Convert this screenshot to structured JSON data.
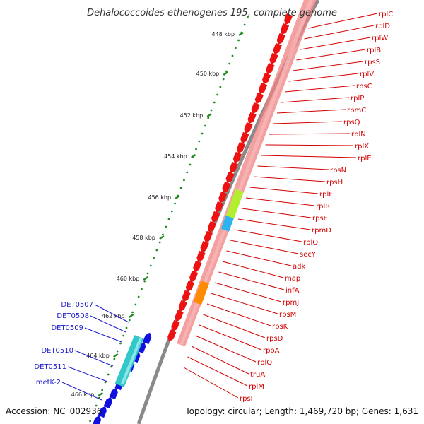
{
  "title": "Dehalococcoides ethenogenes 195, complete genome",
  "accession": "Accession: NC_002936",
  "topology": "Topology: circular; Length: 1,469,720 bp; Genes: 1,631",
  "colors": {
    "forward_gene": "#1010e0",
    "reverse_gene": "#ee1111",
    "cyan_gene": "#30c8c8",
    "lime_gene": "#b4ee30",
    "sky_gene": "#2db4f0",
    "orange_gene": "#ff8c00",
    "pink_track": "#f08080",
    "tick_green": "#228b22",
    "red_label": "#d40000",
    "blue_label": "#1a1acc"
  },
  "kbp_ticks": [
    "448 kbp",
    "450 kbp",
    "452 kbp",
    "454 kbp",
    "456 kbp",
    "458 kbp",
    "460 kbp",
    "462 kbp",
    "464 kbp",
    "466 kbp"
  ],
  "red_genes": [
    "rplC",
    "rplD",
    "rplW",
    "rplB",
    "rpsS",
    "rplV",
    "rpsC",
    "rplP",
    "rpmC",
    "rpsQ",
    "rplN",
    "rplX",
    "rplE",
    "rpsN",
    "rpsH",
    "rplF",
    "rplR",
    "rpsE",
    "rpmD",
    "rplO",
    "secY",
    "adk",
    "map",
    "infA",
    "rpmJ",
    "rpsM",
    "rpsK",
    "rpsD",
    "rpoA",
    "rplQ",
    "truA",
    "rplM",
    "rpsI"
  ],
  "blue_genes": [
    "DET0507",
    "DET0508",
    "DET0509",
    "DET0510",
    "DET0511",
    "metK-2"
  ]
}
